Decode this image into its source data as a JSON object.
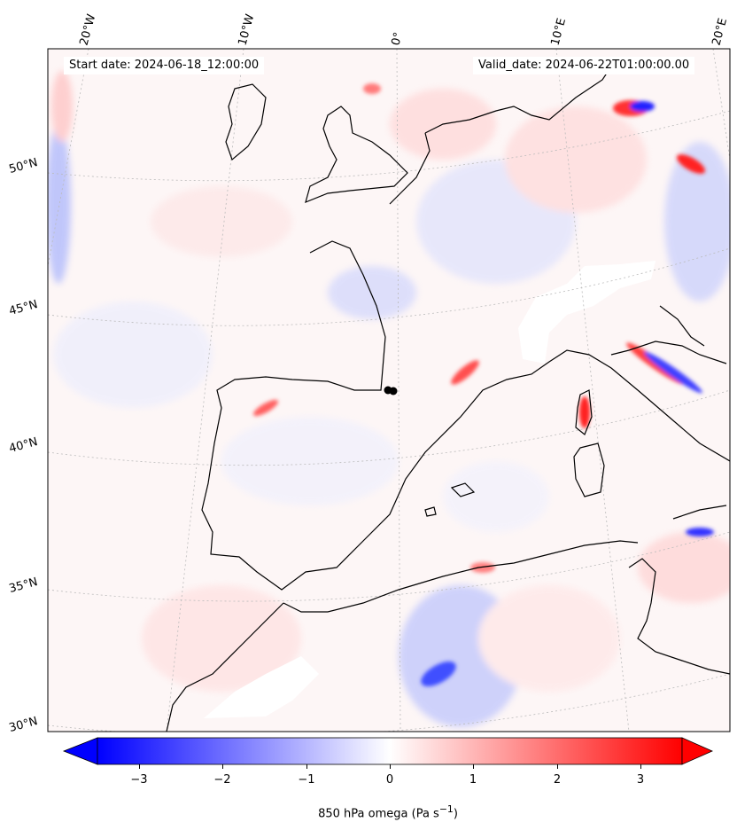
{
  "map": {
    "start_label": "Start date: 2024-06-18_12:00:00",
    "valid_label": "Valid_date: 2024-06-22T01:00:00.00",
    "lon_labels": [
      "20°W",
      "10°W",
      "0°",
      "10°E",
      "20°E"
    ],
    "lat_labels": [
      "50°N",
      "45°N",
      "40°N",
      "35°N",
      "30°N"
    ],
    "variable": "850 hPa omega",
    "units": "Pa s",
    "units_sup": "−1"
  },
  "colorbar": {
    "min": -3.5,
    "max": 3.5,
    "ticks": [
      "−3",
      "−2",
      "−1",
      "0",
      "1",
      "2",
      "3"
    ],
    "tick_values": [
      -3,
      -2,
      -1,
      0,
      1,
      2,
      3
    ],
    "neg_color": "#0000ff",
    "zero_color": "#ffffff",
    "pos_color": "#ff0000"
  }
}
